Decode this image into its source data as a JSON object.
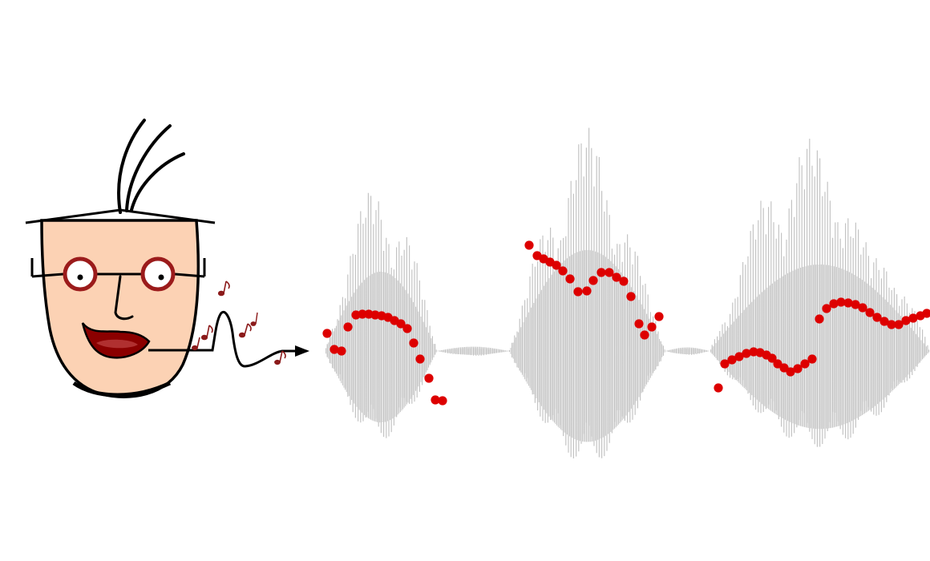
{
  "illustration": {
    "face_icon": "cartoon-face-with-glasses",
    "note_icon": "music-note",
    "arrow_icon": "right-arrow",
    "waveform_icon": "audio-waveform",
    "pitch_marker_icon": "pitch-dot"
  },
  "colors": {
    "background": "#ffffff",
    "skin": "#fcd2b4",
    "outline": "#000000",
    "eye_ring": "#9b1b1b",
    "lips": "#8b0000",
    "mouth_inner": "#b03030",
    "notes": "#8b1a1a",
    "waveform": "#c4c4c4",
    "pitch_dots": "#dd0000"
  }
}
